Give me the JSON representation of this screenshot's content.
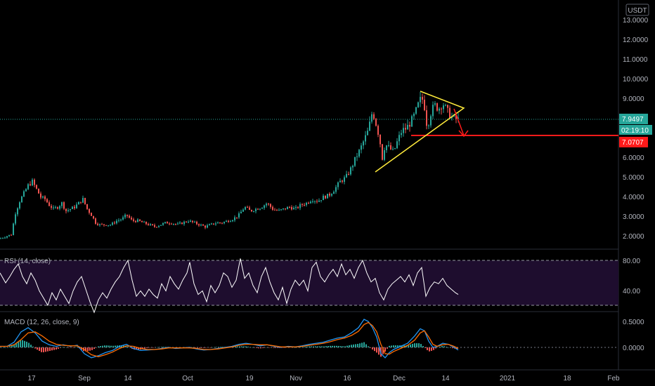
{
  "currency_badge": "USDT",
  "price_axis": {
    "ticks": [
      "13.0000",
      "12.0000",
      "11.0000",
      "10.0000",
      "9.0000",
      "6.0000",
      "5.0000",
      "4.0000",
      "3.0000",
      "2.0000"
    ]
  },
  "last_price": "7.9497",
  "countdown": "02:19:10",
  "support_price": "7.0707",
  "rsi": {
    "label": "RSI (14, close)",
    "ticks": [
      "80.00",
      "40.00"
    ],
    "upper": 80,
    "lower": 30
  },
  "macd": {
    "label": "MACD (12, 26, close, 9)",
    "ticks": [
      "0.5000",
      "0.0000"
    ]
  },
  "time_axis": [
    "17",
    "Sep",
    "14",
    "Oct",
    "19",
    "Nov",
    "16",
    "Dec",
    "14",
    "2021",
    "18",
    "Feb"
  ],
  "colors": {
    "bull": "#26a69a",
    "bear": "#ef5350",
    "trend": "#ffeb3b",
    "support": "#ff1a1a",
    "rsi_line": "#ffffff",
    "rsi_band": "#1e0d2e",
    "macd_line": "#2196f3",
    "signal_line": "#ff6d00",
    "countdown_bg": "#26a69a"
  },
  "chart_data": {
    "type": "candlestick",
    "y_range": [
      1.5,
      13.5
    ],
    "price_path": [
      [
        0,
        1.9
      ],
      [
        8,
        2.0
      ],
      [
        16,
        2.1
      ],
      [
        22,
        3.2
      ],
      [
        28,
        3.8
      ],
      [
        34,
        4.2
      ],
      [
        40,
        4.6
      ],
      [
        46,
        4.8
      ],
      [
        52,
        4.4
      ],
      [
        58,
        4.0
      ],
      [
        64,
        3.9
      ],
      [
        70,
        3.6
      ],
      [
        76,
        3.4
      ],
      [
        82,
        3.5
      ],
      [
        88,
        3.7
      ],
      [
        94,
        3.3
      ],
      [
        100,
        3.4
      ],
      [
        106,
        3.5
      ],
      [
        112,
        3.7
      ],
      [
        118,
        3.9
      ],
      [
        124,
        3.4
      ],
      [
        130,
        3.1
      ],
      [
        136,
        2.7
      ],
      [
        142,
        2.6
      ],
      [
        150,
        2.6
      ],
      [
        158,
        2.6
      ],
      [
        166,
        2.8
      ],
      [
        174,
        2.9
      ],
      [
        180,
        3.1
      ],
      [
        188,
        2.8
      ],
      [
        196,
        2.8
      ],
      [
        204,
        2.7
      ],
      [
        212,
        2.6
      ],
      [
        220,
        2.5
      ],
      [
        228,
        2.6
      ],
      [
        236,
        2.7
      ],
      [
        244,
        2.7
      ],
      [
        252,
        2.6
      ],
      [
        260,
        2.7
      ],
      [
        268,
        2.8
      ],
      [
        276,
        2.7
      ],
      [
        284,
        2.6
      ],
      [
        292,
        2.5
      ],
      [
        300,
        2.6
      ],
      [
        308,
        2.7
      ],
      [
        316,
        2.7
      ],
      [
        324,
        2.8
      ],
      [
        332,
        2.9
      ],
      [
        340,
        3.1
      ],
      [
        348,
        3.5
      ],
      [
        356,
        3.3
      ],
      [
        364,
        3.4
      ],
      [
        372,
        3.5
      ],
      [
        380,
        3.7
      ],
      [
        388,
        3.4
      ],
      [
        396,
        3.3
      ],
      [
        404,
        3.4
      ],
      [
        412,
        3.5
      ],
      [
        420,
        3.4
      ],
      [
        428,
        3.6
      ],
      [
        436,
        3.7
      ],
      [
        444,
        3.9
      ],
      [
        452,
        3.8
      ],
      [
        460,
        4.0
      ],
      [
        468,
        4.1
      ],
      [
        476,
        4.4
      ],
      [
        484,
        4.8
      ],
      [
        492,
        5.0
      ],
      [
        500,
        5.5
      ],
      [
        506,
        6.0
      ],
      [
        512,
        6.4
      ],
      [
        518,
        6.9
      ],
      [
        524,
        7.4
      ],
      [
        530,
        8.4
      ],
      [
        536,
        7.6
      ],
      [
        540,
        7.0
      ],
      [
        544,
        6.0
      ],
      [
        548,
        6.7
      ],
      [
        554,
        6.5
      ],
      [
        560,
        6.3
      ],
      [
        566,
        6.9
      ],
      [
        572,
        7.4
      ],
      [
        578,
        7.5
      ],
      [
        584,
        7.8
      ],
      [
        590,
        8.2
      ],
      [
        596,
        8.8
      ],
      [
        600,
        9.1
      ],
      [
        604,
        8.6
      ],
      [
        608,
        7.5
      ],
      [
        612,
        8.2
      ],
      [
        618,
        8.7
      ],
      [
        624,
        8.5
      ],
      [
        630,
        8.8
      ],
      [
        636,
        8.4
      ],
      [
        642,
        8.1
      ],
      [
        648,
        8.0
      ],
      [
        652,
        7.95
      ]
    ],
    "rsi": [
      [
        0,
        66
      ],
      [
        8,
        55
      ],
      [
        14,
        62
      ],
      [
        20,
        70
      ],
      [
        26,
        76
      ],
      [
        32,
        62
      ],
      [
        38,
        54
      ],
      [
        44,
        66
      ],
      [
        50,
        58
      ],
      [
        56,
        46
      ],
      [
        62,
        38
      ],
      [
        68,
        30
      ],
      [
        74,
        44
      ],
      [
        80,
        36
      ],
      [
        86,
        48
      ],
      [
        92,
        40
      ],
      [
        98,
        32
      ],
      [
        104,
        46
      ],
      [
        110,
        56
      ],
      [
        116,
        62
      ],
      [
        122,
        48
      ],
      [
        128,
        34
      ],
      [
        134,
        22
      ],
      [
        140,
        36
      ],
      [
        146,
        44
      ],
      [
        152,
        38
      ],
      [
        158,
        48
      ],
      [
        164,
        56
      ],
      [
        170,
        62
      ],
      [
        176,
        72
      ],
      [
        182,
        80
      ],
      [
        188,
        58
      ],
      [
        194,
        40
      ],
      [
        200,
        46
      ],
      [
        206,
        40
      ],
      [
        212,
        48
      ],
      [
        218,
        42
      ],
      [
        224,
        38
      ],
      [
        230,
        54
      ],
      [
        236,
        46
      ],
      [
        242,
        62
      ],
      [
        248,
        54
      ],
      [
        254,
        48
      ],
      [
        260,
        58
      ],
      [
        266,
        66
      ],
      [
        270,
        78
      ],
      [
        276,
        54
      ],
      [
        282,
        42
      ],
      [
        288,
        46
      ],
      [
        294,
        34
      ],
      [
        300,
        52
      ],
      [
        306,
        44
      ],
      [
        312,
        52
      ],
      [
        318,
        66
      ],
      [
        324,
        62
      ],
      [
        330,
        50
      ],
      [
        336,
        58
      ],
      [
        342,
        82
      ],
      [
        348,
        60
      ],
      [
        354,
        66
      ],
      [
        360,
        52
      ],
      [
        366,
        44
      ],
      [
        372,
        62
      ],
      [
        378,
        72
      ],
      [
        384,
        56
      ],
      [
        390,
        44
      ],
      [
        396,
        36
      ],
      [
        402,
        50
      ],
      [
        408,
        32
      ],
      [
        414,
        48
      ],
      [
        420,
        58
      ],
      [
        426,
        52
      ],
      [
        432,
        58
      ],
      [
        438,
        46
      ],
      [
        444,
        72
      ],
      [
        450,
        78
      ],
      [
        456,
        62
      ],
      [
        462,
        56
      ],
      [
        468,
        64
      ],
      [
        474,
        70
      ],
      [
        480,
        62
      ],
      [
        486,
        76
      ],
      [
        492,
        64
      ],
      [
        498,
        70
      ],
      [
        504,
        60
      ],
      [
        510,
        72
      ],
      [
        516,
        80
      ],
      [
        522,
        66
      ],
      [
        528,
        56
      ],
      [
        534,
        60
      ],
      [
        540,
        44
      ],
      [
        546,
        36
      ],
      [
        552,
        48
      ],
      [
        558,
        54
      ],
      [
        564,
        58
      ],
      [
        570,
        62
      ],
      [
        576,
        56
      ],
      [
        582,
        64
      ],
      [
        588,
        52
      ],
      [
        594,
        66
      ],
      [
        600,
        72
      ],
      [
        606,
        40
      ],
      [
        612,
        50
      ],
      [
        618,
        56
      ],
      [
        624,
        54
      ],
      [
        630,
        60
      ],
      [
        636,
        52
      ],
      [
        642,
        48
      ],
      [
        648,
        44
      ],
      [
        652,
        42
      ]
    ],
    "macd": [
      [
        0,
        0.02
      ],
      [
        10,
        0.02
      ],
      [
        20,
        0.1
      ],
      [
        30,
        0.3
      ],
      [
        40,
        0.38
      ],
      [
        50,
        0.28
      ],
      [
        60,
        0.12
      ],
      [
        70,
        0.05
      ],
      [
        80,
        0.02
      ],
      [
        90,
        0.05
      ],
      [
        100,
        0.02
      ],
      [
        110,
        0.04
      ],
      [
        120,
        -0.12
      ],
      [
        130,
        -0.2
      ],
      [
        140,
        -0.16
      ],
      [
        150,
        -0.1
      ],
      [
        160,
        -0.06
      ],
      [
        170,
        0.02
      ],
      [
        180,
        0.06
      ],
      [
        190,
        -0.02
      ],
      [
        200,
        -0.06
      ],
      [
        210,
        -0.05
      ],
      [
        220,
        -0.04
      ],
      [
        230,
        -0.02
      ],
      [
        240,
        0.0
      ],
      [
        250,
        -0.02
      ],
      [
        260,
        -0.01
      ],
      [
        270,
        0.0
      ],
      [
        280,
        -0.03
      ],
      [
        290,
        -0.05
      ],
      [
        300,
        -0.04
      ],
      [
        310,
        -0.02
      ],
      [
        320,
        0.0
      ],
      [
        330,
        0.02
      ],
      [
        340,
        0.06
      ],
      [
        350,
        0.08
      ],
      [
        360,
        0.06
      ],
      [
        370,
        0.03
      ],
      [
        380,
        0.05
      ],
      [
        390,
        0.02
      ],
      [
        400,
        0.0
      ],
      [
        410,
        0.02
      ],
      [
        420,
        0.01
      ],
      [
        430,
        0.03
      ],
      [
        440,
        0.06
      ],
      [
        450,
        0.08
      ],
      [
        460,
        0.1
      ],
      [
        470,
        0.14
      ],
      [
        480,
        0.18
      ],
      [
        490,
        0.2
      ],
      [
        500,
        0.28
      ],
      [
        510,
        0.38
      ],
      [
        518,
        0.54
      ],
      [
        524,
        0.5
      ],
      [
        530,
        0.38
      ],
      [
        536,
        0.2
      ],
      [
        542,
        -0.12
      ],
      [
        548,
        -0.2
      ],
      [
        554,
        -0.1
      ],
      [
        560,
        -0.04
      ],
      [
        570,
        0.02
      ],
      [
        580,
        0.08
      ],
      [
        590,
        0.22
      ],
      [
        598,
        0.36
      ],
      [
        604,
        0.32
      ],
      [
        610,
        0.12
      ],
      [
        616,
        0.0
      ],
      [
        622,
        0.02
      ],
      [
        630,
        0.08
      ],
      [
        638,
        0.06
      ],
      [
        646,
        0.0
      ],
      [
        652,
        -0.05
      ]
    ],
    "signal": [
      [
        0,
        0.02
      ],
      [
        10,
        0.02
      ],
      [
        20,
        0.05
      ],
      [
        30,
        0.15
      ],
      [
        40,
        0.28
      ],
      [
        50,
        0.3
      ],
      [
        60,
        0.22
      ],
      [
        70,
        0.12
      ],
      [
        80,
        0.06
      ],
      [
        90,
        0.04
      ],
      [
        100,
        0.03
      ],
      [
        110,
        0.03
      ],
      [
        120,
        -0.04
      ],
      [
        130,
        -0.14
      ],
      [
        140,
        -0.18
      ],
      [
        150,
        -0.14
      ],
      [
        160,
        -0.09
      ],
      [
        170,
        -0.02
      ],
      [
        180,
        0.03
      ],
      [
        190,
        0.02
      ],
      [
        200,
        -0.02
      ],
      [
        210,
        -0.04
      ],
      [
        220,
        -0.04
      ],
      [
        230,
        -0.03
      ],
      [
        240,
        -0.01
      ],
      [
        250,
        -0.01
      ],
      [
        260,
        -0.01
      ],
      [
        270,
        -0.01
      ],
      [
        280,
        -0.02
      ],
      [
        290,
        -0.04
      ],
      [
        300,
        -0.04
      ],
      [
        310,
        -0.03
      ],
      [
        320,
        -0.01
      ],
      [
        330,
        0.01
      ],
      [
        340,
        0.04
      ],
      [
        350,
        0.06
      ],
      [
        360,
        0.06
      ],
      [
        370,
        0.05
      ],
      [
        380,
        0.05
      ],
      [
        390,
        0.03
      ],
      [
        400,
        0.01
      ],
      [
        410,
        0.01
      ],
      [
        420,
        0.01
      ],
      [
        430,
        0.02
      ],
      [
        440,
        0.04
      ],
      [
        450,
        0.06
      ],
      [
        460,
        0.08
      ],
      [
        470,
        0.11
      ],
      [
        480,
        0.15
      ],
      [
        490,
        0.18
      ],
      [
        500,
        0.23
      ],
      [
        510,
        0.31
      ],
      [
        518,
        0.44
      ],
      [
        524,
        0.48
      ],
      [
        530,
        0.42
      ],
      [
        536,
        0.3
      ],
      [
        542,
        0.06
      ],
      [
        548,
        -0.12
      ],
      [
        554,
        -0.13
      ],
      [
        560,
        -0.08
      ],
      [
        570,
        -0.02
      ],
      [
        580,
        0.04
      ],
      [
        590,
        0.14
      ],
      [
        598,
        0.28
      ],
      [
        604,
        0.32
      ],
      [
        610,
        0.2
      ],
      [
        616,
        0.06
      ],
      [
        622,
        0.02
      ],
      [
        630,
        0.05
      ],
      [
        638,
        0.06
      ],
      [
        646,
        0.02
      ],
      [
        652,
        -0.02
      ]
    ]
  }
}
